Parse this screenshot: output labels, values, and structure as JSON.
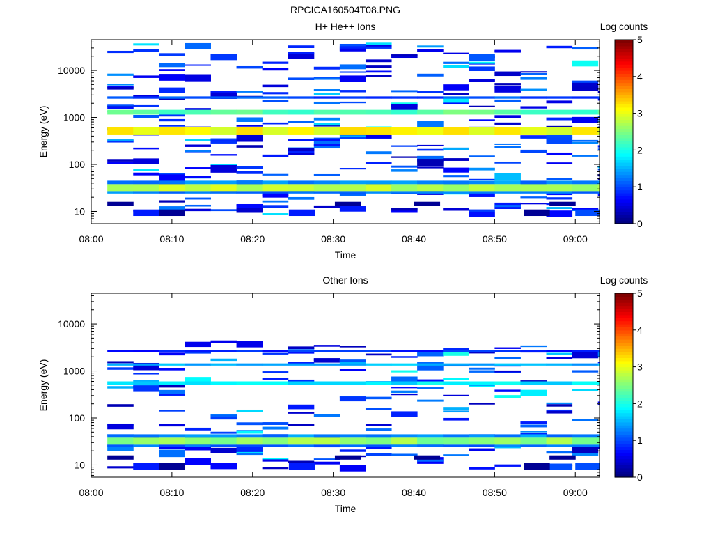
{
  "figure_title": "RPCICA160504T08.PNG",
  "chart_data": [
    {
      "type": "heatmap",
      "title": "H+ He++ Ions",
      "xlabel": "Time",
      "ylabel": "Energy (eV)",
      "x_ticks": [
        "08:00",
        "08:10",
        "08:20",
        "08:30",
        "08:40",
        "08:50",
        "09:00"
      ],
      "xlim": [
        "08:00",
        "09:03"
      ],
      "y_scale": "log",
      "y_ticks": [
        "10",
        "100",
        "1000",
        "10000"
      ],
      "ylim": [
        5.5,
        45000
      ],
      "colorbar": {
        "label": "Log counts",
        "range": [
          0,
          5
        ],
        "ticks": [
          "0",
          "1",
          "2",
          "3",
          "4",
          "5"
        ],
        "colormap": "jet"
      },
      "bands": [
        {
          "energy_range": [
            1150,
            1450
          ],
          "log_counts": 2.3
        },
        {
          "energy_range": [
            420,
            620
          ],
          "log_counts": 3.1
        },
        {
          "energy_range": [
            38,
            45
          ],
          "log_counts": 1.3
        },
        {
          "energy_range": [
            27,
            38
          ],
          "log_counts": 2.8
        },
        {
          "energy_range": [
            24,
            27
          ],
          "log_counts": 1.2
        },
        {
          "energy_range": [
            2500,
            2800
          ],
          "log_counts": 1.0
        }
      ]
    },
    {
      "type": "heatmap",
      "title": "Other Ions",
      "xlabel": "Time",
      "ylabel": "Energy (eV)",
      "x_ticks": [
        "08:00",
        "08:10",
        "08:20",
        "08:30",
        "08:40",
        "08:50",
        "09:00"
      ],
      "xlim": [
        "08:00",
        "09:03"
      ],
      "y_scale": "log",
      "y_ticks": [
        "10",
        "100",
        "1000",
        "10000"
      ],
      "ylim": [
        5.5,
        45000
      ],
      "colorbar": {
        "label": "Log counts",
        "range": [
          0,
          5
        ],
        "ticks": [
          "0",
          "1",
          "2",
          "3",
          "4",
          "5"
        ],
        "colormap": "jet"
      },
      "bands": [
        {
          "energy_range": [
            1300,
            1450
          ],
          "log_counts": 1.5
        },
        {
          "energy_range": [
            500,
            600
          ],
          "log_counts": 1.8
        },
        {
          "energy_range": [
            38,
            45
          ],
          "log_counts": 1.3
        },
        {
          "energy_range": [
            27,
            38
          ],
          "log_counts": 2.6
        },
        {
          "energy_range": [
            24,
            27
          ],
          "log_counts": 1.1
        },
        {
          "energy_range": [
            2500,
            2800
          ],
          "log_counts": 0.8
        }
      ]
    }
  ]
}
